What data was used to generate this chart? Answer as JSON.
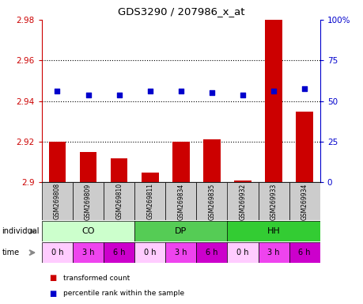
{
  "title": "GDS3290 / 207986_x_at",
  "samples": [
    "GSM269808",
    "GSM269809",
    "GSM269810",
    "GSM269811",
    "GSM269834",
    "GSM269835",
    "GSM269932",
    "GSM269933",
    "GSM269934"
  ],
  "bar_values": [
    2.92,
    2.915,
    2.912,
    2.905,
    2.92,
    2.921,
    2.901,
    2.98,
    2.935
  ],
  "percentile_values": [
    2.945,
    2.943,
    2.943,
    2.945,
    2.945,
    2.944,
    2.943,
    2.945,
    2.946
  ],
  "bar_color": "#cc0000",
  "percentile_color": "#0000cc",
  "ymin": 2.9,
  "ymax": 2.98,
  "yticks": [
    2.9,
    2.92,
    2.94,
    2.96,
    2.98
  ],
  "right_yticks": [
    0,
    25,
    50,
    75,
    100
  ],
  "right_ytick_labels": [
    "0",
    "25",
    "50",
    "75",
    "100%"
  ],
  "dotted_lines": [
    2.92,
    2.94,
    2.96
  ],
  "individual_groups": [
    {
      "label": "CO",
      "start": 0,
      "end": 3,
      "color": "#ccffcc"
    },
    {
      "label": "DP",
      "start": 3,
      "end": 6,
      "color": "#55cc55"
    },
    {
      "label": "HH",
      "start": 6,
      "end": 9,
      "color": "#33cc33"
    }
  ],
  "time_labels": [
    "0 h",
    "3 h",
    "6 h",
    "0 h",
    "3 h",
    "6 h",
    "0 h",
    "3 h",
    "6 h"
  ],
  "time_colors": [
    "#ffccff",
    "#ee44ee",
    "#cc00cc",
    "#ffccff",
    "#ee44ee",
    "#cc00cc",
    "#ffccff",
    "#ee44ee",
    "#cc00cc"
  ],
  "bar_width": 0.55,
  "legend_red_label": "transformed count",
  "legend_blue_label": "percentile rank within the sample",
  "individual_label": "individual",
  "time_label": "time",
  "bg_color": "#ffffff",
  "plot_bg": "#ffffff",
  "sample_row_color": "#cccccc",
  "right_axis_color": "#0000cc",
  "left_axis_color": "#cc0000"
}
